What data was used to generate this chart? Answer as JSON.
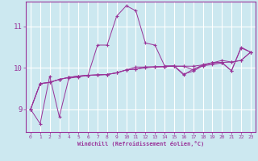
{
  "xlabel": "Windchill (Refroidissement éolien,°C)",
  "bg_color": "#cce8f0",
  "grid_color": "#ffffff",
  "line_color": "#993399",
  "xlim": [
    -0.5,
    23.5
  ],
  "ylim": [
    8.45,
    11.6
  ],
  "yticks": [
    9,
    10,
    11
  ],
  "xticks": [
    0,
    1,
    2,
    3,
    4,
    5,
    6,
    7,
    8,
    9,
    10,
    11,
    12,
    13,
    14,
    15,
    16,
    17,
    18,
    19,
    20,
    21,
    22,
    23
  ],
  "series": [
    [
      9.0,
      8.65,
      9.8,
      8.82,
      9.75,
      9.78,
      9.82,
      10.55,
      10.55,
      11.25,
      11.5,
      11.38,
      10.6,
      10.55,
      10.05,
      10.05,
      9.85,
      9.92,
      10.05,
      10.08,
      10.12,
      9.93,
      10.5,
      10.38
    ],
    [
      9.0,
      9.62,
      9.65,
      9.72,
      9.77,
      9.8,
      9.82,
      9.83,
      9.84,
      9.88,
      9.95,
      9.97,
      10.0,
      10.02,
      10.03,
      10.04,
      10.04,
      10.04,
      10.07,
      10.12,
      10.13,
      10.14,
      10.18,
      10.38
    ],
    [
      9.0,
      9.62,
      9.65,
      9.72,
      9.77,
      9.8,
      9.82,
      9.83,
      9.84,
      9.88,
      9.95,
      9.97,
      10.02,
      10.02,
      10.03,
      10.04,
      9.83,
      9.97,
      10.05,
      10.13,
      10.13,
      9.93,
      10.48,
      10.38
    ],
    [
      9.0,
      9.62,
      9.65,
      9.72,
      9.77,
      9.8,
      9.82,
      9.83,
      9.84,
      9.88,
      9.95,
      10.02,
      10.02,
      10.03,
      10.03,
      10.04,
      10.04,
      9.95,
      10.08,
      10.12,
      10.18,
      10.14,
      10.18,
      10.38
    ]
  ]
}
